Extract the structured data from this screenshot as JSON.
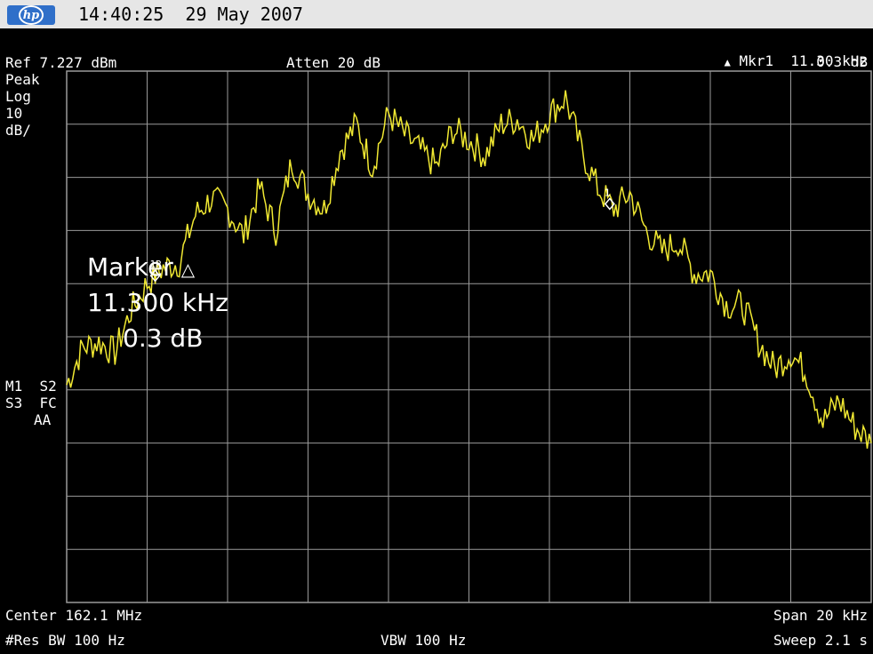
{
  "titlebar": {
    "time": "14:40:25",
    "date": "29 May 2007"
  },
  "header": {
    "marker_readout_label": "Mkr1",
    "marker_readout_freq": "11.30 kHz",
    "marker_readout_amp": "0.3 dB",
    "ref_level": "Ref 7.227 dBm",
    "atten": "Atten 20 dB"
  },
  "left_panel": {
    "detector": "Peak",
    "scale_type": "Log",
    "scale_value": "10",
    "scale_unit": "dB/",
    "status_1": "M1  S2",
    "status_2": "S3  FC",
    "status_3": "AA"
  },
  "marker_box": {
    "title": "Marker",
    "delta_freq": "11.300 kHz",
    "delta_amp": "0.3 dB"
  },
  "markers": [
    {
      "label": "1R",
      "x_khz": -7.8
    },
    {
      "label": "1",
      "x_khz": 3.5
    }
  ],
  "footer": {
    "center": "Center 162.1 MHz",
    "span": "Span 20 kHz",
    "res_bw": "#Res BW 100 Hz",
    "vbw": "VBW 100 Hz",
    "sweep": "Sweep 2.1 s"
  },
  "colors": {
    "trace": "#f0e832",
    "grid": "#9a9a9a",
    "background": "#000000",
    "titlebar": "#e6e6e6",
    "logo": "#2f6fc9"
  },
  "chart_data": {
    "type": "line",
    "x_unit": "kHz offset from center",
    "y_unit": "dB below reference",
    "xlim": [
      -10,
      10
    ],
    "ylim": [
      -100,
      0
    ],
    "grid": true,
    "series": [
      {
        "x": [
          -10,
          -9.6,
          -9.2,
          -8.8,
          -8.4,
          -8.0,
          -7.6,
          -7.2,
          -6.8,
          -6.4,
          -6.0,
          -5.6,
          -5.2,
          -4.8,
          -4.4,
          -4.0,
          -3.6,
          -3.2,
          -2.8,
          -2.4,
          -2.0,
          -1.6,
          -1.2,
          -0.8,
          -0.4,
          0.0,
          0.4,
          0.8,
          1.2,
          1.6,
          2.0,
          2.4,
          2.8,
          3.2,
          3.6,
          4.0,
          4.4,
          4.8,
          5.2,
          5.6,
          6.0,
          6.4,
          6.8,
          7.2,
          7.6,
          8.0,
          8.4,
          8.8,
          9.2,
          9.6,
          10.0
        ],
        "y": [
          -59,
          -52,
          -51,
          -53,
          -45,
          -40,
          -37,
          -36,
          -27,
          -24,
          -26,
          -31,
          -22,
          -30,
          -17,
          -23,
          -26,
          -15,
          -10,
          -18,
          -8,
          -12,
          -15,
          -18,
          -11,
          -13,
          -16,
          -10,
          -9,
          -13,
          -8,
          -5,
          -15,
          -22,
          -26,
          -23,
          -30,
          -34,
          -32,
          -38,
          -38,
          -44,
          -44,
          -51,
          -56,
          -53,
          -57,
          -66,
          -62,
          -67,
          -70
        ]
      }
    ]
  }
}
